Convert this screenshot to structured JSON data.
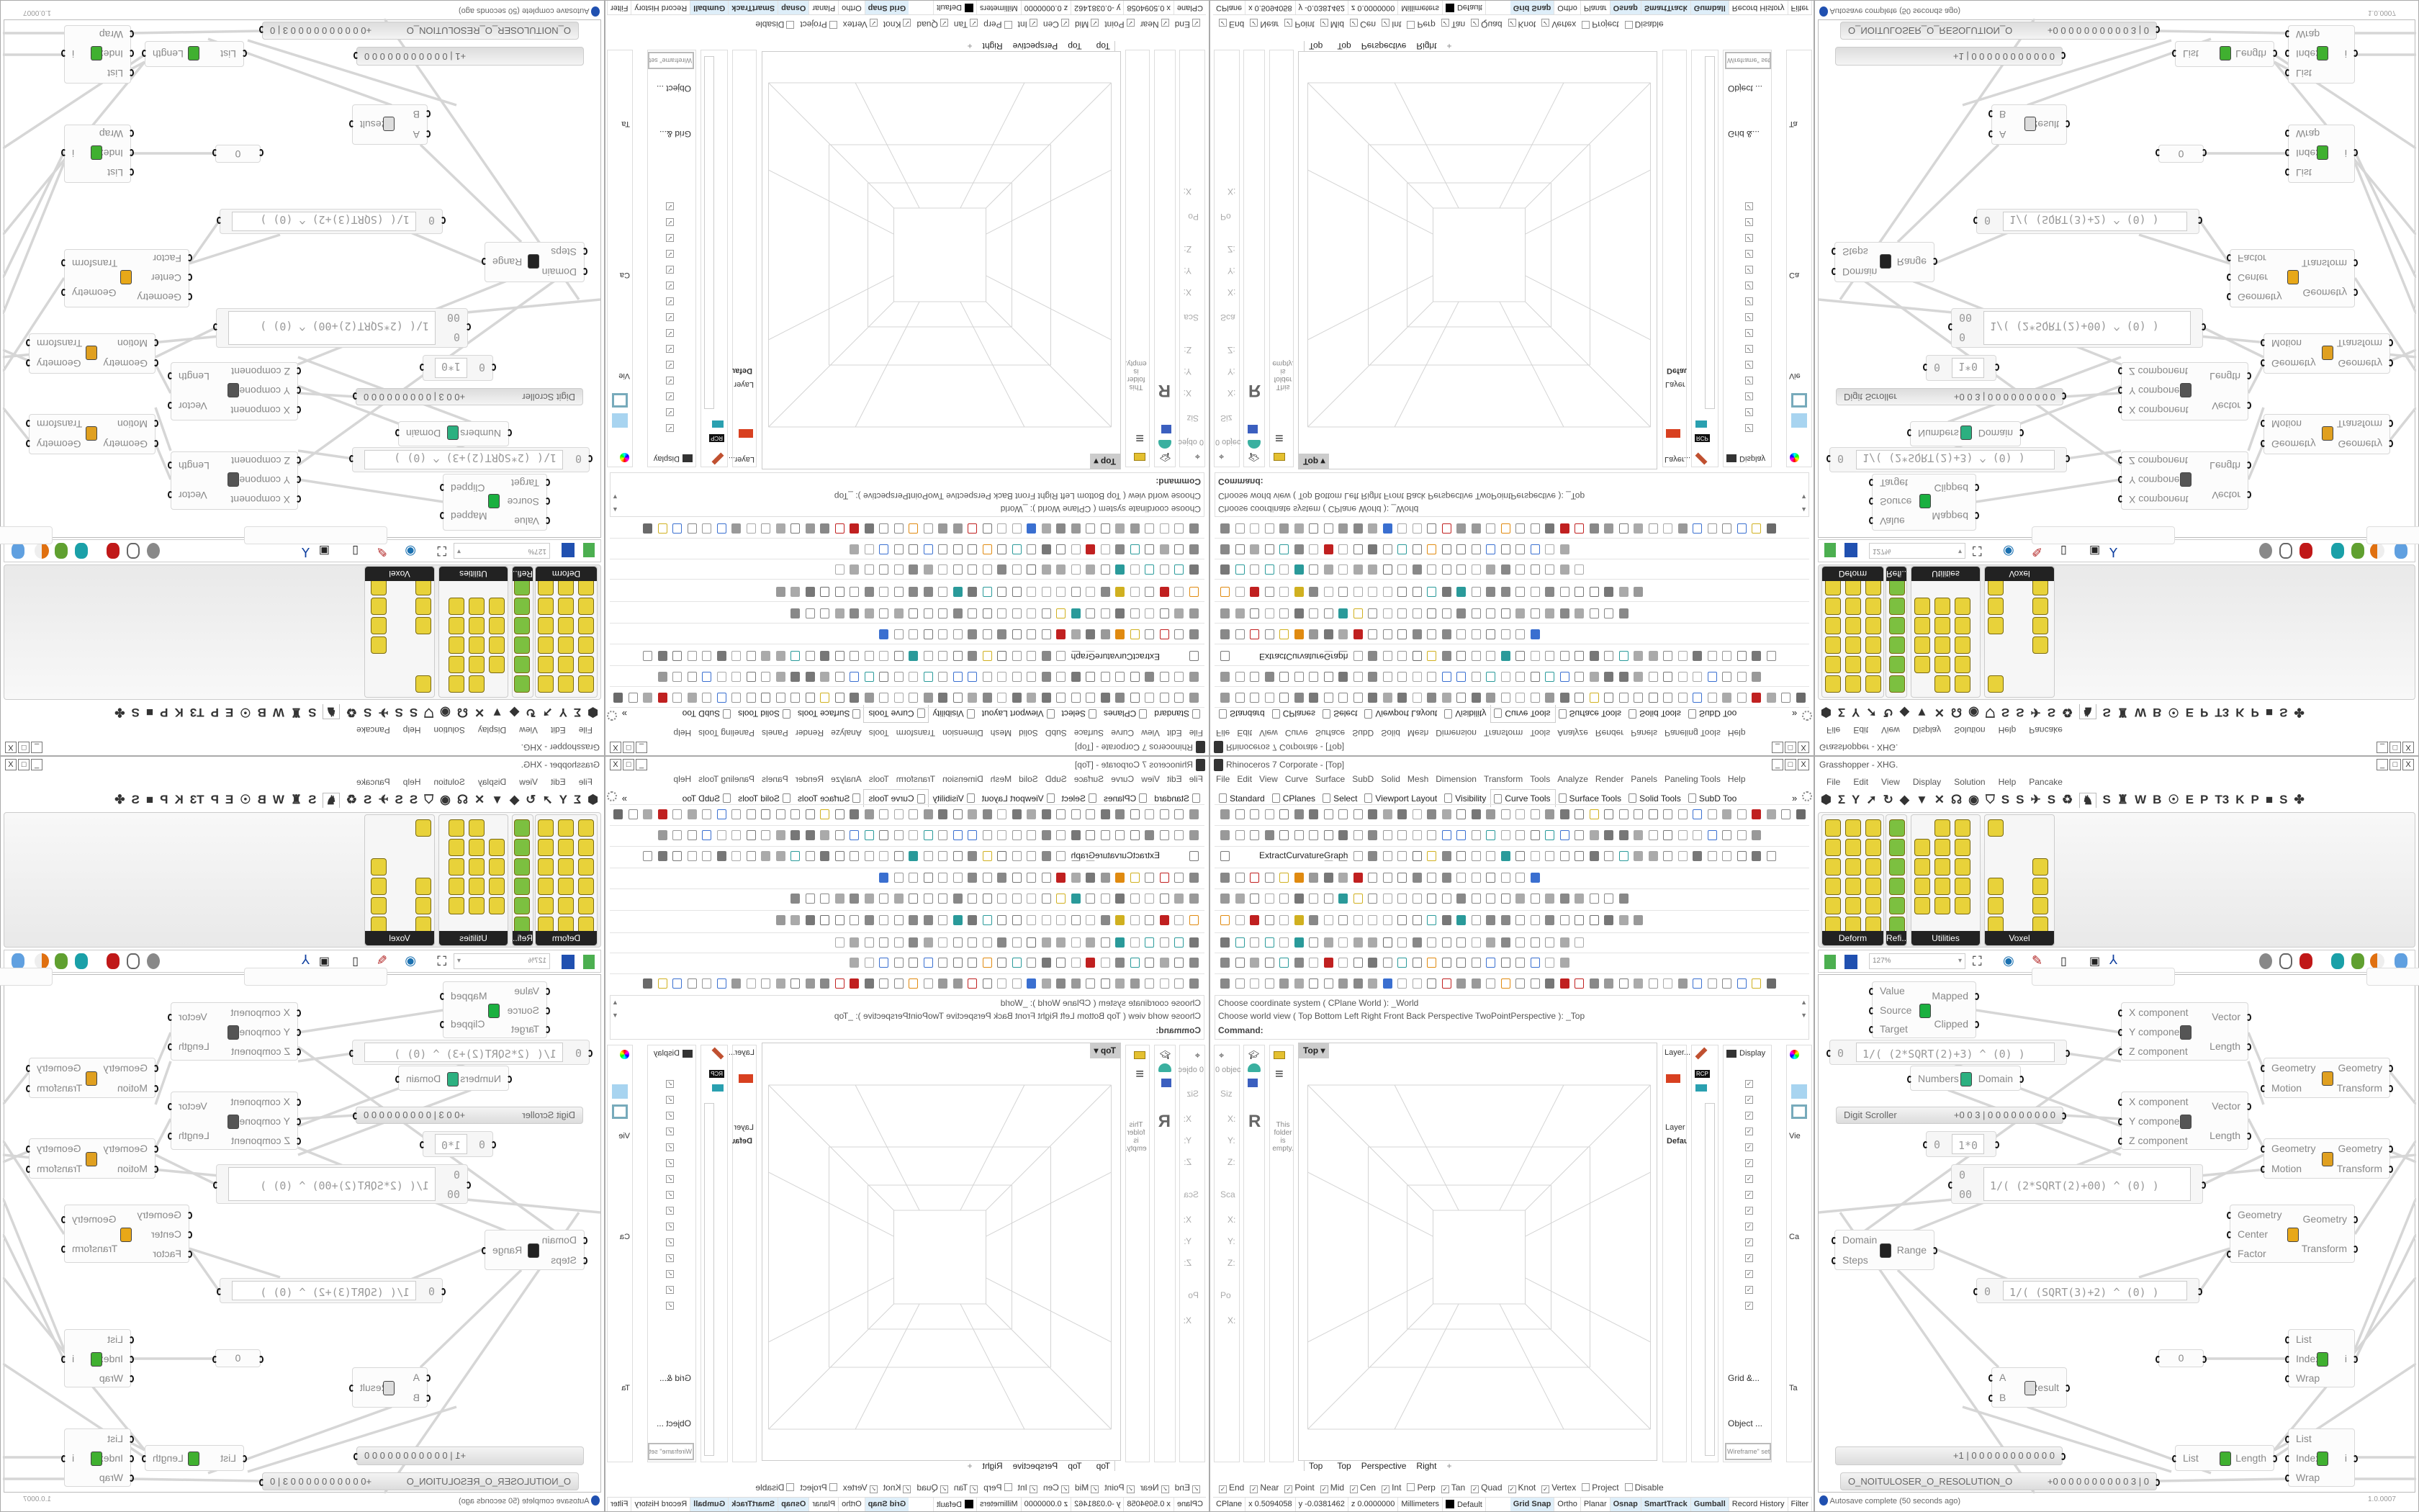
{
  "rhino": {
    "title": "Rhinoceros 7 Corporate - [Top]",
    "window_buttons": [
      "_",
      "□",
      "X"
    ],
    "menu": [
      "File",
      "Edit",
      "View",
      "Curve",
      "Surface",
      "SubD",
      "Solid",
      "Mesh",
      "Dimension",
      "Transform",
      "Tools",
      "Analyze",
      "Render",
      "Panels",
      "Paneling Tools",
      "Help"
    ],
    "toolbar_tabs": [
      {
        "label": "Standard",
        "active": false
      },
      {
        "label": "CPlanes",
        "active": false
      },
      {
        "label": "Select",
        "active": false
      },
      {
        "label": "Viewport Layout",
        "active": false
      },
      {
        "label": "Visibility",
        "active": false
      },
      {
        "label": "Curve Tools",
        "active": true
      },
      {
        "label": "Surface Tools",
        "active": false
      },
      {
        "label": "Solid Tools",
        "active": false
      },
      {
        "label": "SubD Too",
        "active": false
      }
    ],
    "toolbar_overflow": "»",
    "extract_button": "ExtractCurvatureGraph",
    "command_history": [
      "Choose coordinate system ( CPlane  World ): _World",
      "Choose world view ( Top  Bottom  Left  Right  Front  Back  Perspective  TwoPointPerspective ): _Top"
    ],
    "command_prompt": "Command:",
    "viewport": {
      "name": "Top",
      "tabs": [
        "Top",
        "Top",
        "Perspective",
        "Right"
      ],
      "add_tab": "+"
    },
    "left_panels": {
      "properties_count": "0 objec",
      "sections": [
        "Siz",
        "X:",
        "Y:",
        "Z:",
        "Sca",
        "X:",
        "Y:",
        "Z:",
        "Po",
        "X:"
      ],
      "help_letter": "R",
      "folder_empty": "This folder is empty."
    },
    "right_panels": {
      "layer_title": "Layer...",
      "layer_header": "Layer",
      "layer_default": "Default",
      "display_title": "Display",
      "display_checked_rows": 15,
      "rcp": "RCP",
      "grid_section": "Grid &...",
      "object_section": "Object ...",
      "wireframe_button": "Wireframe\" set",
      "view_label": "Vie",
      "camera_label": "Ca",
      "target_label": "Ta"
    },
    "osnaps": [
      {
        "label": "End",
        "checked": true
      },
      {
        "label": "Near",
        "checked": true
      },
      {
        "label": "Point",
        "checked": true
      },
      {
        "label": "Mid",
        "checked": true
      },
      {
        "label": "Cen",
        "checked": true
      },
      {
        "label": "Int",
        "checked": true
      },
      {
        "label": "Perp",
        "checked": false
      },
      {
        "label": "Tan",
        "checked": true
      },
      {
        "label": "Quad",
        "checked": true
      },
      {
        "label": "Knot",
        "checked": true
      },
      {
        "label": "Vertex",
        "checked": true
      },
      {
        "label": "Project",
        "checked": false
      },
      {
        "label": "Disable",
        "checked": false
      }
    ],
    "status": {
      "cplane": "CPlane",
      "x": "x 0.5094058",
      "y": "y -0.0381462",
      "z": "z 0.0000000",
      "units": "Millimeters",
      "layer": "Default",
      "layer_color": "#000000",
      "toggles": [
        {
          "label": "Grid Snap",
          "on": true
        },
        {
          "label": "Ortho",
          "on": false
        },
        {
          "label": "Planar",
          "on": false
        },
        {
          "label": "Osnap",
          "on": true
        },
        {
          "label": "SmartTrack",
          "on": true
        },
        {
          "label": "Gumball",
          "on": true
        },
        {
          "label": "Record History",
          "on": false
        },
        {
          "label": "Filter",
          "on": false
        }
      ]
    }
  },
  "grasshopper": {
    "title": "Grasshopper - XHG.",
    "menu": [
      "File",
      "Edit",
      "View",
      "Display",
      "Solution",
      "Help",
      "Pancake"
    ],
    "tabs": [
      "⬢",
      "Σ",
      "Y",
      "➚",
      "↻",
      "◆",
      "▼",
      "✕",
      "☊",
      "◉",
      "⛉",
      "S",
      "S",
      "✈",
      "S",
      "♻",
      "♞",
      "S",
      "♜",
      "W",
      "B",
      "☉",
      "E",
      "P",
      "T3",
      "K",
      "P",
      "■",
      "S",
      "✤"
    ],
    "active_tab": 16,
    "palette_groups": [
      "Deform",
      "Refi...",
      "Utilities",
      "Voxel"
    ],
    "zoom": "127%",
    "nodes": [
      {
        "kind": "component",
        "name": "Remap",
        "inputs": [
          "Value",
          "Source",
          "Target"
        ],
        "outputs": [
          "Mapped",
          "Clipped"
        ],
        "icon": "remap-icon"
      },
      {
        "kind": "expression",
        "inputs": [
          "0"
        ],
        "expression": "1/( (2*SQRT(2)+3) ^ (0) )"
      },
      {
        "kind": "component",
        "name": "Bounds",
        "inputs": [
          "Numbers"
        ],
        "outputs": [
          "Domain"
        ],
        "icon": "bounds-icon"
      },
      {
        "kind": "slider",
        "label": "Digit Scroller",
        "digits": "+0 0 3 | 0 0 0 0 0 0 0 0 0"
      },
      {
        "kind": "expression",
        "inputs": [
          "0"
        ],
        "expression": "1*0"
      },
      {
        "kind": "expression",
        "inputs": [
          "0",
          "00"
        ],
        "expression": "1/( (2*SQRT(2)+00) ^ (0) )"
      },
      {
        "kind": "component",
        "name": "Vector XYZ",
        "inputs": [
          "X component",
          "Y component",
          "Z component"
        ],
        "outputs": [
          "Vector",
          "Length"
        ],
        "icon": "vector-xyz-icon"
      },
      {
        "kind": "component",
        "name": "Vector XYZ",
        "inputs": [
          "X component",
          "Y component",
          "Z component"
        ],
        "outputs": [
          "Vector",
          "Length"
        ],
        "icon": "vector-xyz-icon"
      },
      {
        "kind": "component",
        "name": "Move",
        "inputs": [
          "Geometry",
          "Motion"
        ],
        "outputs": [
          "Geometry",
          "Transform"
        ],
        "icon": "move-icon"
      },
      {
        "kind": "component",
        "name": "Move",
        "inputs": [
          "Geometry",
          "Motion"
        ],
        "outputs": [
          "Geometry",
          "Transform"
        ],
        "icon": "move-icon"
      },
      {
        "kind": "component",
        "name": "Scale",
        "inputs": [
          "Geometry",
          "Center",
          "Factor"
        ],
        "outputs": [
          "Geometry",
          "Transform"
        ],
        "icon": "scale-icon"
      },
      {
        "kind": "component",
        "name": "Range",
        "inputs": [
          "Domain",
          "Steps"
        ],
        "outputs": [
          "Range"
        ],
        "icon": "range-icon"
      },
      {
        "kind": "expression",
        "inputs": [
          "0"
        ],
        "expression": "1/( (SQRT(3)+2) ^ (0) )"
      },
      {
        "kind": "component",
        "name": "Multiplication",
        "inputs": [
          "A",
          "B"
        ],
        "outputs": [
          "Result"
        ],
        "icon": "multiply-icon"
      },
      {
        "kind": "panel",
        "value": "0"
      },
      {
        "kind": "component",
        "name": "List Item",
        "inputs": [
          "List",
          "Index",
          "Wrap"
        ],
        "outputs": [
          "i"
        ],
        "icon": "list-item-icon"
      },
      {
        "kind": "component",
        "name": "List Item",
        "inputs": [
          "List",
          "Index",
          "Wrap"
        ],
        "outputs": [
          "i"
        ],
        "icon": "list-item-icon"
      },
      {
        "kind": "component",
        "name": "List Length",
        "inputs": [
          "List"
        ],
        "outputs": [
          "Length"
        ],
        "icon": "list-length-icon"
      },
      {
        "kind": "slider",
        "label": "",
        "digits": "+1 | 0 0 0 0 0 0 0 0 0 0 0"
      },
      {
        "kind": "slider",
        "label": "O_NOITULOSER_O_RESOLUTION_O",
        "digits": "+0 0 0 0 0 0 0 0 0 0 3 | 0"
      }
    ],
    "status": {
      "message": "Autosave complete (50 seconds ago)",
      "version": "1.0.0007"
    }
  }
}
